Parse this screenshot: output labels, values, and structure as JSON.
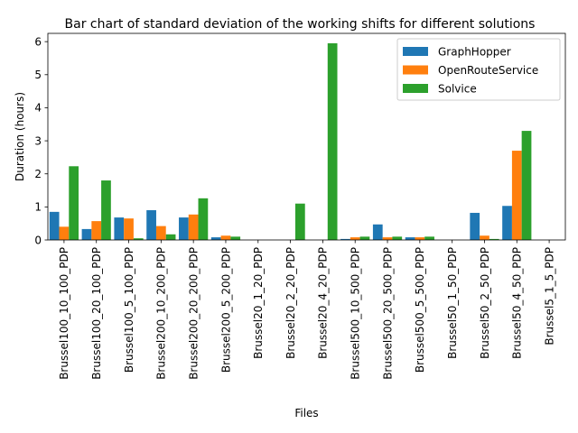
{
  "chart_data": {
    "type": "bar",
    "title": "Bar chart of standard deviation of the working shifts for different solutions",
    "xlabel": "Files",
    "ylabel": "Duration (hours)",
    "ylim": [
      0,
      6.25
    ],
    "yticks": [
      0,
      1,
      2,
      3,
      4,
      5,
      6
    ],
    "grid": false,
    "legend_position": "top-right",
    "categories": [
      "Brussel100_10_100_PDP",
      "Brussel100_20_100_PDP",
      "Brussel100_5_100_PDP",
      "Brussel200_10_200_PDP",
      "Brussel200_20_200_PDP",
      "Brussel200_5_200_PDP",
      "Brussel20_1_20_PDP",
      "Brussel20_2_20_PDP",
      "Brussel20_4_20_PDP",
      "Brussel500_10_500_PDP",
      "Brussel500_20_500_PDP",
      "Brussel500_5_500_PDP",
      "Brussel50_1_50_PDP",
      "Brussel50_2_50_PDP",
      "Brussel50_4_50_PDP",
      "Brussel5_1_5_PDP"
    ],
    "series": [
      {
        "name": "GraphHopper",
        "color": "#1f77b4",
        "values": [
          0.85,
          0.33,
          0.68,
          0.9,
          0.68,
          0.08,
          0.0,
          0.0,
          0.0,
          0.03,
          0.47,
          0.08,
          0.0,
          0.82,
          1.03,
          0.0
        ]
      },
      {
        "name": "OpenRouteService",
        "color": "#ff7f0e",
        "values": [
          0.4,
          0.57,
          0.65,
          0.42,
          0.77,
          0.13,
          0.0,
          0.0,
          0.0,
          0.08,
          0.08,
          0.08,
          0.0,
          0.13,
          2.7,
          0.0
        ]
      },
      {
        "name": "Solvice",
        "color": "#2ca02c",
        "values": [
          2.23,
          1.8,
          0.05,
          0.17,
          1.26,
          0.1,
          0.0,
          1.1,
          5.95,
          0.1,
          0.1,
          0.1,
          0.0,
          0.03,
          3.3,
          0.0
        ]
      }
    ]
  }
}
